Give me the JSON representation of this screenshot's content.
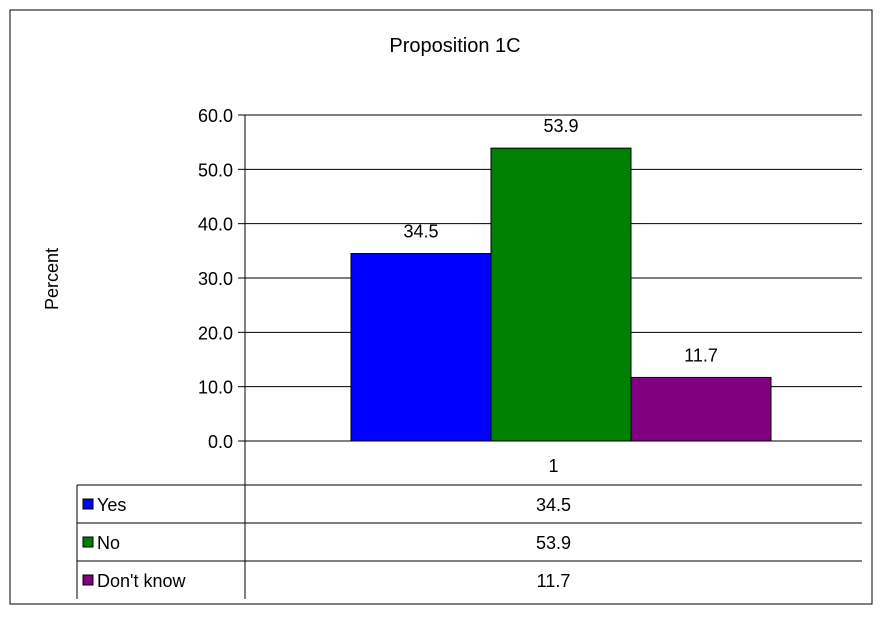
{
  "chart_data": {
    "type": "bar",
    "title": "Proposition 1C",
    "xlabel": "",
    "ylabel": "Percent",
    "ylim": [
      0,
      60
    ],
    "y_ticks": [
      "0.0",
      "10.0",
      "20.0",
      "30.0",
      "40.0",
      "50.0",
      "60.0"
    ],
    "y_tick_values": [
      0,
      10,
      20,
      30,
      40,
      50,
      60
    ],
    "categories": [
      "1"
    ],
    "series": [
      {
        "name": "Yes",
        "values": [
          34.5
        ],
        "value_labels": [
          "34.5"
        ],
        "color": "#0000ff"
      },
      {
        "name": "No",
        "values": [
          53.9
        ],
        "value_labels": [
          "53.9"
        ],
        "color": "#008000"
      },
      {
        "name": "Don't know",
        "values": [
          11.7
        ],
        "value_labels": [
          "11.7"
        ],
        "color": "#800080"
      }
    ],
    "grid": true,
    "legend": "data-table-below"
  }
}
